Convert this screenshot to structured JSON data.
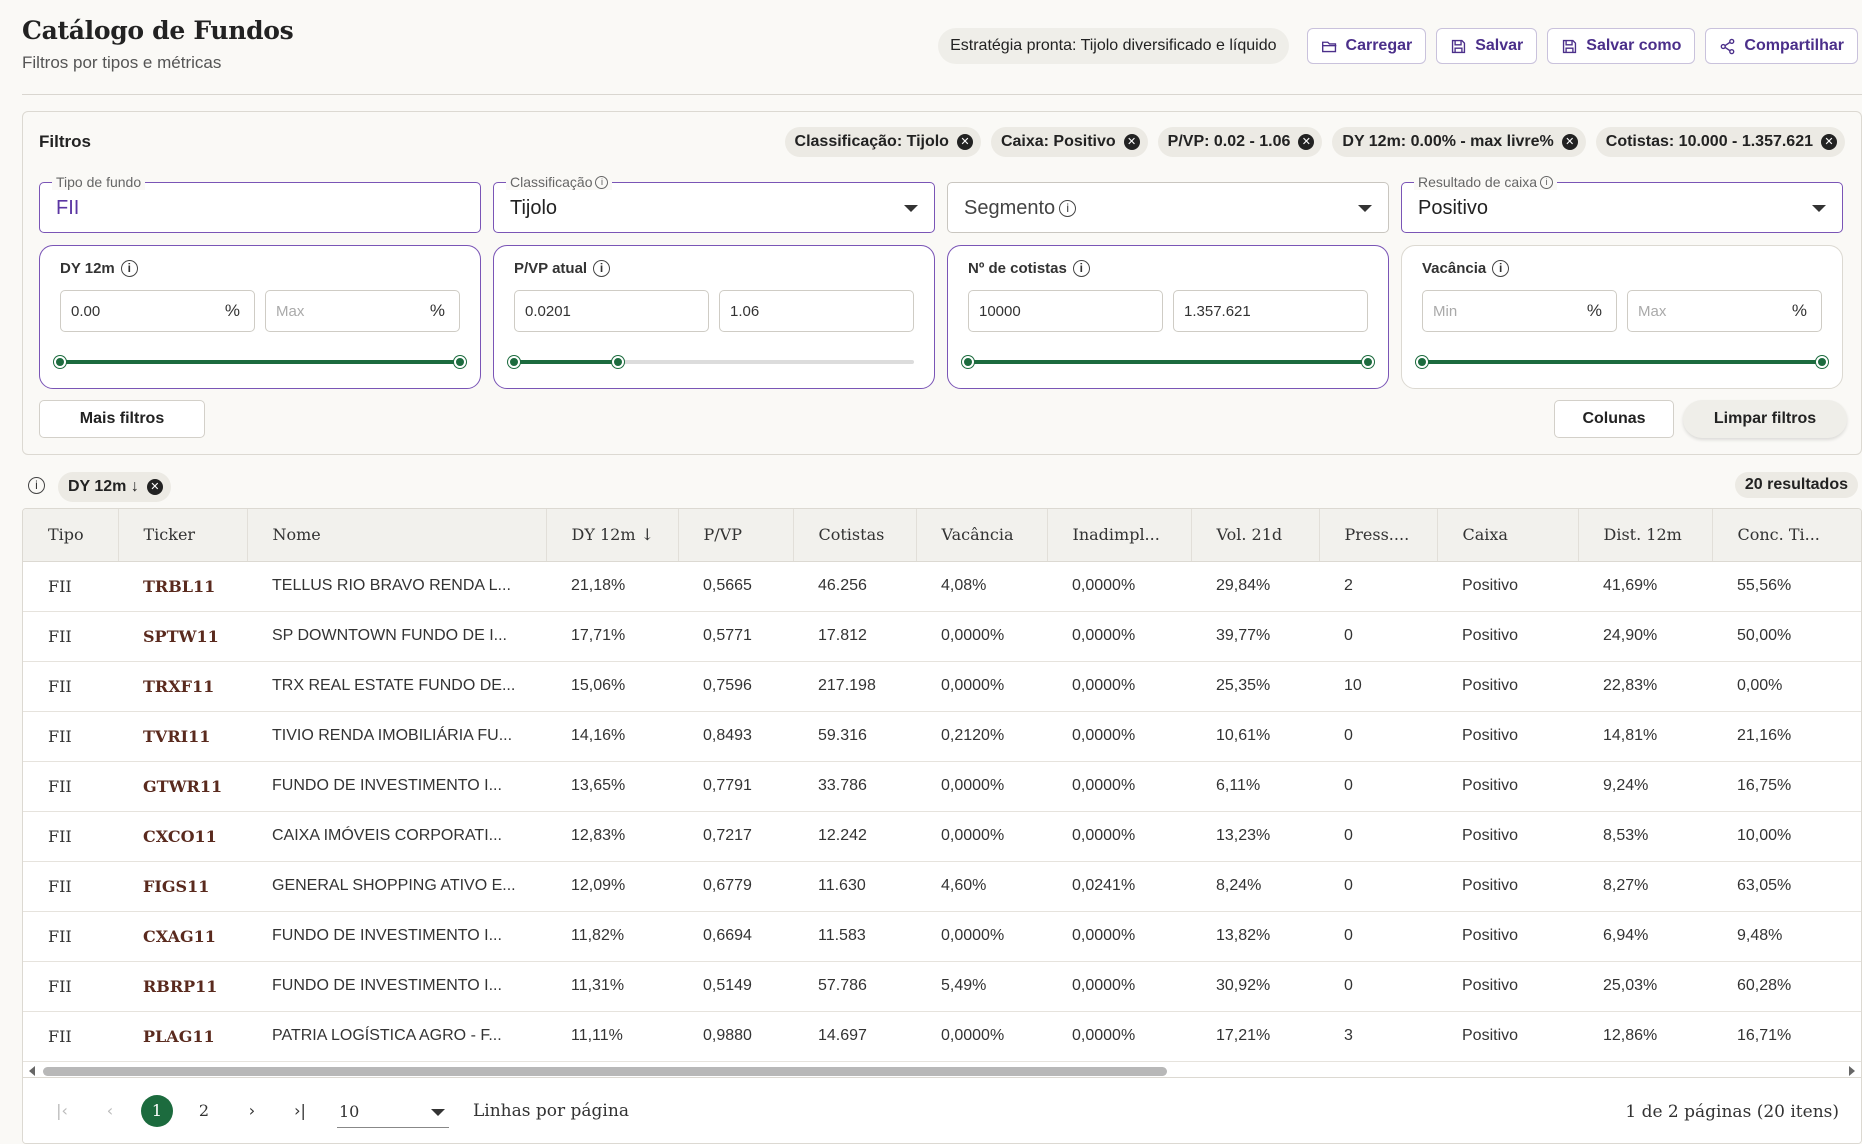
{
  "header": {
    "title": "Catálogo de Fundos",
    "subtitle": "Filtros por tipos e métricas",
    "strategy": "Estratégia pronta: Tijolo diversificado e líquido",
    "actions": {
      "load": "Carregar",
      "save": "Salvar",
      "save_as": "Salvar como",
      "share": "Compartilhar"
    }
  },
  "filters": {
    "title": "Filtros",
    "active_chips": [
      "Classificação: Tijolo",
      "Caixa: Positivo",
      "P/VP: 0.02 - 1.06",
      "DY 12m: 0.00% - max livre%",
      "Cotistas: 10.000 - 1.357.621"
    ],
    "fund_type": {
      "label": "Tipo de fundo",
      "value": "FII"
    },
    "classification": {
      "label": "Classificação",
      "value": "Tijolo"
    },
    "segment": {
      "placeholder": "Segmento"
    },
    "cash_result": {
      "label": "Resultado de caixa",
      "value": "Positivo"
    },
    "ranges": {
      "dy": {
        "title": "DY 12m",
        "min": "0.00",
        "max_placeholder": "Max",
        "unit": "%",
        "slider": {
          "low": 0,
          "high": 1
        }
      },
      "pvp": {
        "title": "P/VP atual",
        "min": "0.0201",
        "max": "1.06",
        "slider": {
          "low": 0,
          "high": 0.26
        }
      },
      "holders": {
        "title": "Nº de cotistas",
        "min": "10000",
        "max": "1.357.621",
        "slider": {
          "low": 0,
          "high": 1
        }
      },
      "vacancy": {
        "title": "Vacância",
        "min_placeholder": "Min",
        "max_placeholder": "Max",
        "unit": "%",
        "slider": {
          "low": 0,
          "high": 1
        }
      }
    },
    "more_filters": "Mais filtros",
    "columns": "Colunas",
    "clear": "Limpar filtros"
  },
  "sort": {
    "chip": "DY 12m ↓"
  },
  "results": "20 resultados",
  "table": {
    "columns": [
      "Tipo",
      "Ticker",
      "Nome",
      "DY 12m ↓",
      "P/VP",
      "Cotistas",
      "Vacância",
      "Inadimpl...",
      "Vol. 21d",
      "Press....",
      "Caixa",
      "Dist. 12m",
      "Conc. Ti..."
    ],
    "rows": [
      [
        "FII",
        "TRBL11",
        "TELLUS RIO BRAVO RENDA L...",
        "21,18%",
        "0,5665",
        "46.256",
        "4,08%",
        "0,0000%",
        "29,84%",
        "2",
        "Positivo",
        "41,69%",
        "55,56%"
      ],
      [
        "FII",
        "SPTW11",
        "SP DOWNTOWN FUNDO DE I...",
        "17,71%",
        "0,5771",
        "17.812",
        "0,0000%",
        "0,0000%",
        "39,77%",
        "0",
        "Positivo",
        "24,90%",
        "50,00%"
      ],
      [
        "FII",
        "TRXF11",
        "TRX REAL ESTATE FUNDO DE...",
        "15,06%",
        "0,7596",
        "217.198",
        "0,0000%",
        "0,0000%",
        "25,35%",
        "10",
        "Positivo",
        "22,83%",
        "0,00%"
      ],
      [
        "FII",
        "TVRI11",
        "TIVIO RENDA IMOBILIÁRIA FU...",
        "14,16%",
        "0,8493",
        "59.316",
        "0,2120%",
        "0,0000%",
        "10,61%",
        "0",
        "Positivo",
        "14,81%",
        "21,16%"
      ],
      [
        "FII",
        "GTWR11",
        "FUNDO DE INVESTIMENTO I...",
        "13,65%",
        "0,7791",
        "33.786",
        "0,0000%",
        "0,0000%",
        "6,11%",
        "0",
        "Positivo",
        "9,24%",
        "16,75%"
      ],
      [
        "FII",
        "CXCO11",
        "CAIXA IMÓVEIS CORPORATI...",
        "12,83%",
        "0,7217",
        "12.242",
        "0,0000%",
        "0,0000%",
        "13,23%",
        "0",
        "Positivo",
        "8,53%",
        "10,00%"
      ],
      [
        "FII",
        "FIGS11",
        "GENERAL SHOPPING ATIVO E...",
        "12,09%",
        "0,6779",
        "11.630",
        "4,60%",
        "0,0241%",
        "8,24%",
        "0",
        "Positivo",
        "8,27%",
        "63,05%"
      ],
      [
        "FII",
        "CXAG11",
        "FUNDO DE INVESTIMENTO I...",
        "11,82%",
        "0,6694",
        "11.583",
        "0,0000%",
        "0,0000%",
        "13,82%",
        "0",
        "Positivo",
        "6,94%",
        "9,48%"
      ],
      [
        "FII",
        "RBRP11",
        "FUNDO DE INVESTIMENTO I...",
        "11,31%",
        "0,5149",
        "57.786",
        "5,49%",
        "0,0000%",
        "30,92%",
        "0",
        "Positivo",
        "25,03%",
        "60,28%"
      ],
      [
        "FII",
        "PLAG11",
        "PATRIA LOGÍSTICA AGRO - F...",
        "11,11%",
        "0,9880",
        "14.697",
        "0,0000%",
        "0,0000%",
        "17,21%",
        "3",
        "Positivo",
        "12,86%",
        "16,71%"
      ]
    ]
  },
  "pagination": {
    "pages": [
      "1",
      "2"
    ],
    "current": "1",
    "per_page": "10",
    "per_page_label": "Linhas por página",
    "status": "1 de 2 páginas (20 itens)"
  }
}
